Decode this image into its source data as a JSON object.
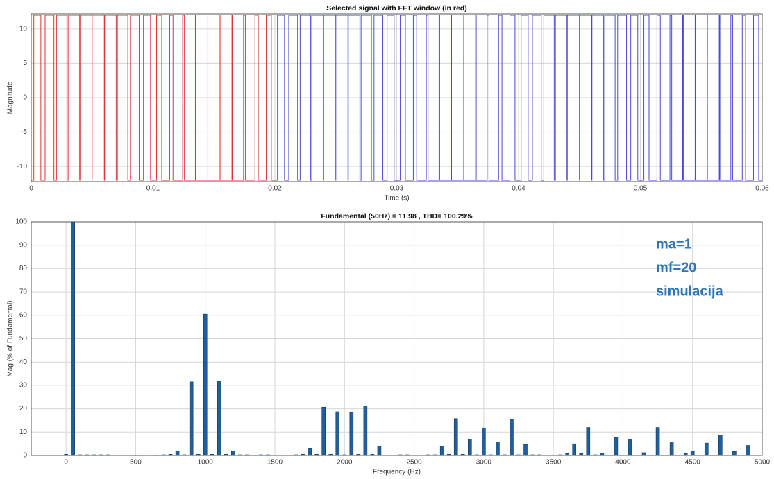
{
  "chart_data": [
    {
      "type": "line",
      "title": "Selected signal with FFT window (in red)",
      "xlabel": "Time (s)",
      "ylabel": "Magnitude",
      "xlim": [
        0,
        0.06
      ],
      "xticks": [
        0,
        0.01,
        0.02,
        0.03,
        0.04,
        0.05,
        0.06
      ],
      "ylim": [
        -12.2,
        12.2
      ],
      "yticks": [
        -10,
        -5,
        0,
        5,
        10
      ],
      "grid": true,
      "step": true,
      "series": [
        {
          "color": "#e03434",
          "x": [
            0,
            0.000211,
            0.000789,
            0.001137,
            0.001863,
            0.002073,
            0.002927,
            0.003027,
            0.003973,
            0.004003,
            0.004997,
            0.005003,
            0.005997,
            0.006027,
            0.006973,
            0.007073,
            0.007927,
            0.008137,
            0.008863,
            0.009211,
            0.009789,
            0.010289,
            0.010711,
            0.011363,
            0.011637,
            0.012427,
            0.012573,
            0.013473,
            0.013527,
            0.014497,
            0.014503,
            0.015497,
            0.015503,
            0.016473,
            0.016527,
            0.017427,
            0.017573,
            0.018363,
            0.018637,
            0.019289,
            0.019711,
            0.02
          ],
          "values": [
            -12,
            12,
            -12,
            12,
            -12,
            12,
            -12,
            12,
            -12,
            12,
            -12,
            12,
            -12,
            12,
            -12,
            12,
            -12,
            12,
            -12,
            12,
            -12,
            12,
            -12,
            12,
            -12,
            12,
            -12,
            12,
            -12,
            12,
            -12,
            12,
            -12,
            12,
            -12,
            12,
            -12,
            12,
            -12,
            12,
            -12,
            -12
          ]
        },
        {
          "color": "#4a4ad6",
          "x": [
            0.02,
            0.020211,
            0.020789,
            0.021137,
            0.021863,
            0.022073,
            0.022927,
            0.023027,
            0.023973,
            0.024003,
            0.024997,
            0.025003,
            0.025997,
            0.026027,
            0.026973,
            0.027073,
            0.027927,
            0.028137,
            0.028863,
            0.029211,
            0.029789,
            0.030289,
            0.030711,
            0.031363,
            0.031637,
            0.032427,
            0.032573,
            0.033473,
            0.033527,
            0.034497,
            0.034503,
            0.035497,
            0.035503,
            0.036473,
            0.036527,
            0.037427,
            0.037573,
            0.038363,
            0.038637,
            0.039289,
            0.039711,
            0.040211,
            0.040789,
            0.041137,
            0.041863,
            0.042073,
            0.042927,
            0.043027,
            0.043973,
            0.044003,
            0.044997,
            0.045003,
            0.045997,
            0.046027,
            0.046973,
            0.047073,
            0.047927,
            0.048137,
            0.048863,
            0.049211,
            0.049789,
            0.050289,
            0.050711,
            0.051363,
            0.051637,
            0.052427,
            0.052573,
            0.053473,
            0.053527,
            0.054497,
            0.054503,
            0.055497,
            0.055503,
            0.056473,
            0.056527,
            0.057427,
            0.057573,
            0.058363,
            0.058637,
            0.059289,
            0.059711,
            0.06
          ],
          "values": [
            -12,
            12,
            -12,
            12,
            -12,
            12,
            -12,
            12,
            -12,
            12,
            -12,
            12,
            -12,
            12,
            -12,
            12,
            -12,
            12,
            -12,
            12,
            -12,
            12,
            -12,
            12,
            -12,
            12,
            -12,
            12,
            -12,
            12,
            -12,
            12,
            -12,
            12,
            -12,
            12,
            -12,
            12,
            -12,
            12,
            -12,
            12,
            -12,
            12,
            -12,
            12,
            -12,
            12,
            -12,
            12,
            -12,
            12,
            -12,
            12,
            -12,
            12,
            -12,
            12,
            -12,
            12,
            -12,
            12,
            -12,
            12,
            -12,
            12,
            -12,
            12,
            -12,
            12,
            -12,
            12,
            -12,
            12,
            -12,
            12,
            -12,
            12,
            -12,
            12,
            -12,
            -12
          ]
        }
      ]
    },
    {
      "type": "bar",
      "title": "Fundamental (50Hz) = 11.98 , THD= 100.29%",
      "xlabel": "Frequency (Hz)",
      "ylabel": "Mag (% of Fundamental)",
      "xlim": [
        -250,
        5000
      ],
      "xticks": [
        0,
        500,
        1000,
        1500,
        2000,
        2500,
        3000,
        3500,
        4000,
        4500,
        5000
      ],
      "ylim": [
        0,
        100
      ],
      "yticks": [
        0,
        10,
        20,
        30,
        40,
        50,
        60,
        70,
        80,
        90,
        100
      ],
      "grid": true,
      "color": "#1f5f9c",
      "annotations": [
        "ma=1",
        "mf=20",
        "simulacija"
      ],
      "x": [
        0,
        50,
        100,
        150,
        200,
        250,
        300,
        500,
        650,
        700,
        750,
        800,
        850,
        900,
        950,
        1000,
        1050,
        1100,
        1150,
        1200,
        1250,
        1300,
        1400,
        1450,
        1650,
        1700,
        1750,
        1800,
        1850,
        1900,
        1950,
        2000,
        2050,
        2100,
        2150,
        2200,
        2250,
        2400,
        2450,
        2600,
        2650,
        2700,
        2750,
        2800,
        2850,
        2900,
        2950,
        3000,
        3050,
        3100,
        3150,
        3200,
        3250,
        3300,
        3350,
        3400,
        3550,
        3600,
        3650,
        3700,
        3750,
        3800,
        3850,
        3950,
        4050,
        4150,
        4250,
        4350,
        4450,
        4500,
        4600,
        4700,
        4800,
        4900
      ],
      "values": [
        0.5,
        100,
        0.3,
        0.3,
        0.3,
        0.3,
        0.3,
        0.2,
        0.2,
        0.3,
        0.5,
        2,
        0.3,
        31.5,
        0.5,
        60.5,
        0.5,
        31.8,
        0.5,
        2,
        0.3,
        0.3,
        0.3,
        0.3,
        0.3,
        0.5,
        3,
        0.5,
        20.7,
        0.5,
        18.7,
        0.3,
        18.3,
        0.5,
        21.2,
        0.5,
        4,
        0.3,
        0.3,
        0.3,
        0.3,
        4,
        0.5,
        15.8,
        0.5,
        7,
        0.3,
        11.8,
        0.3,
        5.8,
        0.3,
        15.3,
        0.3,
        4.7,
        0.3,
        0.3,
        0.3,
        0.8,
        5,
        0.8,
        12,
        0.3,
        1,
        7.6,
        6.7,
        1.2,
        12,
        5.5,
        0.8,
        1.8,
        5.3,
        8.8,
        1.8,
        4.3
      ]
    }
  ]
}
